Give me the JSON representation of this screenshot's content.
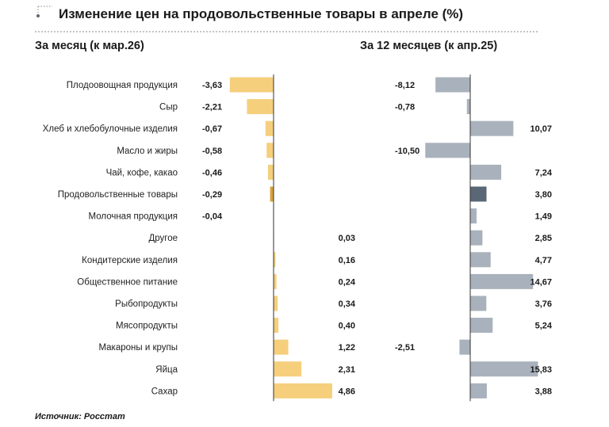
{
  "header": {
    "title": "Изменение цен на продовольственные товары в апреле (%)",
    "subtitle_month": "За месяц (к мар.26)",
    "subtitle_year": "За 12 месяцев (к апр.25)",
    "source": "Источник: Росстат"
  },
  "colors": {
    "month_bar": "#f5cf7c",
    "month_highlight": "#d9a23a",
    "year_bar": "#a9b2bc",
    "year_highlight": "#5a6776",
    "axis": "#333333",
    "title_marker": "#5a6776"
  },
  "chart_data": [
    {
      "type": "bar",
      "orientation": "horizontal",
      "title": "За месяц (к мар.26)",
      "categories": [
        "Плодоовощная продукция",
        "Сыр",
        "Хлеб и хлебобулочные изделия",
        "Масло и жиры",
        "Чай, кофе, какао",
        "Продовольственные товары",
        "Молочная продукция",
        "Другое",
        "Кондитерские изделия",
        "Общественное питание",
        "Рыбопродукты",
        "Мясопродукты",
        "Макароны и крупы",
        "Яйца",
        "Сахар"
      ],
      "values": [
        -3.63,
        -2.21,
        -0.67,
        -0.58,
        -0.46,
        -0.29,
        -0.04,
        0.03,
        0.16,
        0.24,
        0.34,
        0.4,
        1.22,
        2.31,
        4.86
      ],
      "labels": [
        "-3,63",
        "-2,21",
        "-0,67",
        "-0,58",
        "-0,46",
        "-0,29",
        "-0,04",
        "0,03",
        "0,16",
        "0,24",
        "0,34",
        "0,40",
        "1,22",
        "2,31",
        "4,86"
      ],
      "highlight": "Продовольственные товары"
    },
    {
      "type": "bar",
      "orientation": "horizontal",
      "title": "За 12 месяцев (к апр.25)",
      "categories": [
        "Плодоовощная продукция",
        "Сыр",
        "Хлеб и хлебобулочные изделия",
        "Масло и жиры",
        "Чай, кофе, какао",
        "Продовольственные товары",
        "Молочная продукция",
        "Другое",
        "Кондитерские изделия",
        "Общественное питание",
        "Рыбопродукты",
        "Мясопродукты",
        "Макароны и крупы",
        "Яйца",
        "Сахар"
      ],
      "values": [
        -8.12,
        -0.78,
        10.07,
        -10.5,
        7.24,
        3.8,
        1.49,
        2.85,
        4.77,
        14.67,
        3.76,
        5.24,
        -2.51,
        15.83,
        3.88
      ],
      "labels": [
        "-8,12",
        "-0,78",
        "10,07",
        "-10,50",
        "7,24",
        "3,80",
        "1,49",
        "2,85",
        "4,77",
        "14,67",
        "3,76",
        "5,24",
        "-2,51",
        "15,83",
        "3,88"
      ],
      "highlight": "Продовольственные товары"
    }
  ]
}
